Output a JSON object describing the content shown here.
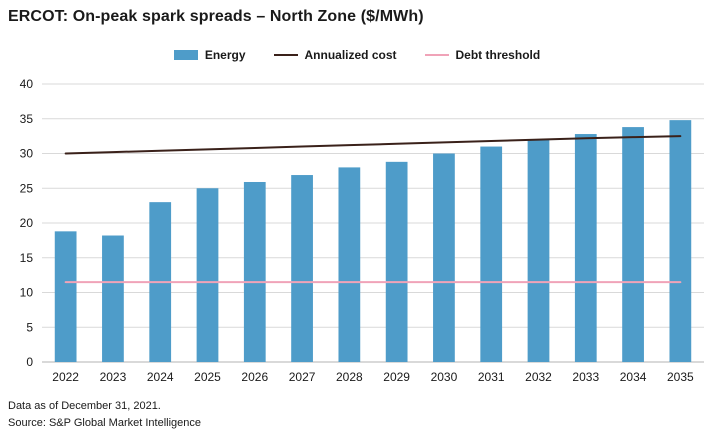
{
  "header": {
    "title": "ERCOT: On-peak spark spreads – North Zone ($/MWh)"
  },
  "legend": [
    {
      "label": "Energy",
      "type": "bar",
      "color": "#4E9CC9"
    },
    {
      "label": "Annualized cost",
      "type": "line",
      "color": "#3A211A"
    },
    {
      "label": "Debt threshold",
      "type": "line",
      "color": "#F0A3B8"
    }
  ],
  "chart_data": {
    "type": "bar",
    "title": "ERCOT: On-peak spark spreads – North Zone ($/MWh)",
    "categories": [
      "2022",
      "2023",
      "2024",
      "2025",
      "2026",
      "2027",
      "2028",
      "2029",
      "2030",
      "2031",
      "2032",
      "2033",
      "2034",
      "2035"
    ],
    "series": [
      {
        "name": "Energy",
        "type": "bar",
        "color": "#4E9CC9",
        "values": [
          18.8,
          18.2,
          23.0,
          25.0,
          25.9,
          26.9,
          28.0,
          28.8,
          30.0,
          31.0,
          32.0,
          32.8,
          33.8,
          34.8
        ]
      },
      {
        "name": "Annualized cost",
        "type": "line",
        "color": "#3A211A",
        "values": [
          30.0,
          30.2,
          30.4,
          30.6,
          30.8,
          31.0,
          31.2,
          31.4,
          31.6,
          31.8,
          32.0,
          32.2,
          32.35,
          32.5
        ]
      },
      {
        "name": "Debt threshold",
        "type": "line",
        "color": "#F0A3B8",
        "values": [
          11.5,
          11.5,
          11.5,
          11.5,
          11.5,
          11.5,
          11.5,
          11.5,
          11.5,
          11.5,
          11.5,
          11.5,
          11.5,
          11.5
        ]
      }
    ],
    "xlabel": "",
    "ylabel": "",
    "ylim": [
      0,
      40
    ],
    "ytick_step": 5,
    "grid": true,
    "legend_position": "top",
    "grid_color": "#d9d9d9",
    "axis_color": "#b3b3b3",
    "tick_label_color": "#1a1a1a"
  },
  "footer": {
    "line1": "Data as of December 31, 2021.",
    "line2": "Source: S&P Global Market Intelligence"
  }
}
